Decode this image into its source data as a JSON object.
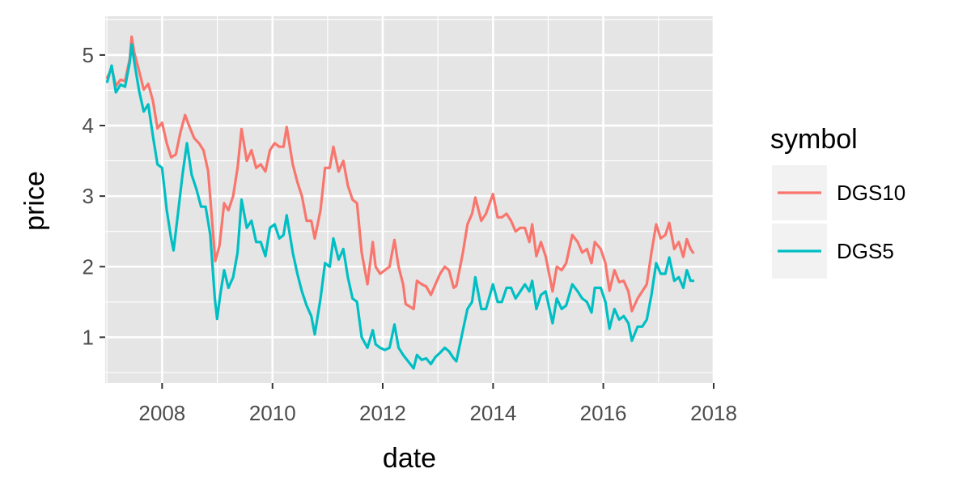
{
  "chart_data": {
    "type": "line",
    "xlabel": "date",
    "ylabel": "price",
    "x_range": [
      "2006-12-20",
      "2018-01-01"
    ],
    "ylim": [
      0.35,
      5.55
    ],
    "x_ticks": [
      {
        "date": "2008-01-01",
        "label": "2008"
      },
      {
        "date": "2010-01-01",
        "label": "2010"
      },
      {
        "date": "2012-01-01",
        "label": "2012"
      },
      {
        "date": "2014-01-01",
        "label": "2014"
      },
      {
        "date": "2016-01-01",
        "label": "2016"
      },
      {
        "date": "2018-01-01",
        "label": "2018"
      }
    ],
    "y_ticks": [
      1,
      2,
      3,
      4,
      5
    ],
    "y_tick_labels": [
      "1",
      "2",
      "3",
      "4",
      "5"
    ],
    "grid": true,
    "panel_background": "#e5e5e5",
    "grid_color": "#ffffff",
    "legend": {
      "title": "symbol",
      "position": "right"
    },
    "series": [
      {
        "name": "DGS10",
        "color": "#f8766d",
        "points": [
          [
            "2007-01-03",
            4.68
          ],
          [
            "2007-02-01",
            4.82
          ],
          [
            "2007-03-01",
            4.56
          ],
          [
            "2007-04-01",
            4.65
          ],
          [
            "2007-05-01",
            4.63
          ],
          [
            "2007-06-01",
            4.95
          ],
          [
            "2007-06-13",
            5.26
          ],
          [
            "2007-07-01",
            5.03
          ],
          [
            "2007-08-01",
            4.78
          ],
          [
            "2007-09-01",
            4.51
          ],
          [
            "2007-10-01",
            4.59
          ],
          [
            "2007-11-01",
            4.35
          ],
          [
            "2007-12-01",
            3.96
          ],
          [
            "2008-01-01",
            4.04
          ],
          [
            "2008-02-01",
            3.75
          ],
          [
            "2008-03-01",
            3.55
          ],
          [
            "2008-04-01",
            3.59
          ],
          [
            "2008-05-01",
            3.9
          ],
          [
            "2008-06-01",
            4.15
          ],
          [
            "2008-07-01",
            3.98
          ],
          [
            "2008-08-01",
            3.82
          ],
          [
            "2008-09-01",
            3.75
          ],
          [
            "2008-10-01",
            3.65
          ],
          [
            "2008-11-01",
            3.35
          ],
          [
            "2008-12-18",
            2.08
          ],
          [
            "2009-01-15",
            2.3
          ],
          [
            "2009-02-15",
            2.9
          ],
          [
            "2009-03-15",
            2.8
          ],
          [
            "2009-04-15",
            3.0
          ],
          [
            "2009-05-15",
            3.4
          ],
          [
            "2009-06-10",
            3.95
          ],
          [
            "2009-07-15",
            3.5
          ],
          [
            "2009-08-15",
            3.65
          ],
          [
            "2009-09-15",
            3.4
          ],
          [
            "2009-10-15",
            3.45
          ],
          [
            "2009-11-15",
            3.35
          ],
          [
            "2009-12-15",
            3.65
          ],
          [
            "2010-01-15",
            3.75
          ],
          [
            "2010-02-15",
            3.7
          ],
          [
            "2010-03-15",
            3.7
          ],
          [
            "2010-04-05",
            3.98
          ],
          [
            "2010-05-15",
            3.45
          ],
          [
            "2010-06-15",
            3.2
          ],
          [
            "2010-07-15",
            3.0
          ],
          [
            "2010-08-15",
            2.65
          ],
          [
            "2010-09-15",
            2.65
          ],
          [
            "2010-10-08",
            2.4
          ],
          [
            "2010-11-15",
            2.8
          ],
          [
            "2010-12-15",
            3.4
          ],
          [
            "2011-01-15",
            3.4
          ],
          [
            "2011-02-08",
            3.7
          ],
          [
            "2011-03-15",
            3.35
          ],
          [
            "2011-04-15",
            3.5
          ],
          [
            "2011-05-15",
            3.15
          ],
          [
            "2011-06-15",
            2.95
          ],
          [
            "2011-07-15",
            2.9
          ],
          [
            "2011-08-15",
            2.2
          ],
          [
            "2011-09-22",
            1.75
          ],
          [
            "2011-10-27",
            2.35
          ],
          [
            "2011-11-15",
            2.0
          ],
          [
            "2011-12-15",
            1.9
          ],
          [
            "2012-01-15",
            1.95
          ],
          [
            "2012-02-15",
            2.0
          ],
          [
            "2012-03-19",
            2.38
          ],
          [
            "2012-04-15",
            2.0
          ],
          [
            "2012-05-15",
            1.75
          ],
          [
            "2012-06-01",
            1.47
          ],
          [
            "2012-07-24",
            1.4
          ],
          [
            "2012-08-15",
            1.8
          ],
          [
            "2012-09-15",
            1.75
          ],
          [
            "2012-10-15",
            1.72
          ],
          [
            "2012-11-15",
            1.6
          ],
          [
            "2012-12-15",
            1.75
          ],
          [
            "2013-01-15",
            1.9
          ],
          [
            "2013-02-15",
            2.0
          ],
          [
            "2013-03-15",
            1.95
          ],
          [
            "2013-04-15",
            1.7
          ],
          [
            "2013-05-03",
            1.73
          ],
          [
            "2013-06-15",
            2.2
          ],
          [
            "2013-07-15",
            2.6
          ],
          [
            "2013-08-15",
            2.75
          ],
          [
            "2013-09-05",
            2.98
          ],
          [
            "2013-10-15",
            2.65
          ],
          [
            "2013-11-15",
            2.75
          ],
          [
            "2013-12-31",
            3.03
          ],
          [
            "2014-01-31",
            2.7
          ],
          [
            "2014-02-28",
            2.7
          ],
          [
            "2014-03-31",
            2.75
          ],
          [
            "2014-04-30",
            2.65
          ],
          [
            "2014-05-30",
            2.5
          ],
          [
            "2014-06-30",
            2.55
          ],
          [
            "2014-07-31",
            2.55
          ],
          [
            "2014-08-29",
            2.35
          ],
          [
            "2014-09-17",
            2.6
          ],
          [
            "2014-10-15",
            2.15
          ],
          [
            "2014-11-14",
            2.35
          ],
          [
            "2014-12-15",
            2.15
          ],
          [
            "2015-01-30",
            1.65
          ],
          [
            "2015-02-27",
            2.0
          ],
          [
            "2015-03-31",
            1.95
          ],
          [
            "2015-04-30",
            2.05
          ],
          [
            "2015-06-10",
            2.45
          ],
          [
            "2015-07-15",
            2.35
          ],
          [
            "2015-08-14",
            2.2
          ],
          [
            "2015-09-15",
            2.25
          ],
          [
            "2015-10-15",
            2.05
          ],
          [
            "2015-11-06",
            2.35
          ],
          [
            "2015-12-15",
            2.25
          ],
          [
            "2016-01-15",
            2.05
          ],
          [
            "2016-02-11",
            1.66
          ],
          [
            "2016-03-15",
            1.95
          ],
          [
            "2016-04-15",
            1.78
          ],
          [
            "2016-05-15",
            1.8
          ],
          [
            "2016-06-15",
            1.65
          ],
          [
            "2016-07-08",
            1.37
          ],
          [
            "2016-08-15",
            1.55
          ],
          [
            "2016-09-15",
            1.65
          ],
          [
            "2016-10-15",
            1.75
          ],
          [
            "2016-11-15",
            2.2
          ],
          [
            "2016-12-16",
            2.6
          ],
          [
            "2017-01-15",
            2.4
          ],
          [
            "2017-02-15",
            2.45
          ],
          [
            "2017-03-13",
            2.62
          ],
          [
            "2017-04-15",
            2.25
          ],
          [
            "2017-05-15",
            2.35
          ],
          [
            "2017-06-14",
            2.14
          ],
          [
            "2017-07-07",
            2.39
          ],
          [
            "2017-08-01",
            2.25
          ],
          [
            "2017-08-18",
            2.2
          ]
        ]
      },
      {
        "name": "DGS5",
        "color": "#00bfc4",
        "points": [
          [
            "2007-01-03",
            4.62
          ],
          [
            "2007-02-01",
            4.85
          ],
          [
            "2007-03-01",
            4.47
          ],
          [
            "2007-04-01",
            4.58
          ],
          [
            "2007-05-01",
            4.55
          ],
          [
            "2007-06-01",
            4.9
          ],
          [
            "2007-06-13",
            5.15
          ],
          [
            "2007-07-01",
            4.9
          ],
          [
            "2007-08-01",
            4.5
          ],
          [
            "2007-09-01",
            4.2
          ],
          [
            "2007-10-01",
            4.3
          ],
          [
            "2007-11-01",
            3.85
          ],
          [
            "2007-12-01",
            3.45
          ],
          [
            "2008-01-01",
            3.4
          ],
          [
            "2008-02-01",
            2.8
          ],
          [
            "2008-03-01",
            2.4
          ],
          [
            "2008-03-17",
            2.23
          ],
          [
            "2008-04-15",
            2.75
          ],
          [
            "2008-05-15",
            3.3
          ],
          [
            "2008-06-13",
            3.75
          ],
          [
            "2008-07-15",
            3.3
          ],
          [
            "2008-08-15",
            3.1
          ],
          [
            "2008-09-15",
            2.85
          ],
          [
            "2008-10-15",
            2.85
          ],
          [
            "2008-11-15",
            2.45
          ],
          [
            "2008-12-15",
            1.55
          ],
          [
            "2008-12-30",
            1.26
          ],
          [
            "2009-01-20",
            1.6
          ],
          [
            "2009-02-15",
            1.95
          ],
          [
            "2009-03-15",
            1.7
          ],
          [
            "2009-04-15",
            1.85
          ],
          [
            "2009-05-15",
            2.2
          ],
          [
            "2009-06-10",
            2.95
          ],
          [
            "2009-07-15",
            2.55
          ],
          [
            "2009-08-15",
            2.65
          ],
          [
            "2009-09-15",
            2.35
          ],
          [
            "2009-10-15",
            2.35
          ],
          [
            "2009-11-15",
            2.15
          ],
          [
            "2009-12-15",
            2.55
          ],
          [
            "2010-01-15",
            2.6
          ],
          [
            "2010-02-15",
            2.4
          ],
          [
            "2010-03-15",
            2.45
          ],
          [
            "2010-04-05",
            2.73
          ],
          [
            "2010-05-15",
            2.2
          ],
          [
            "2010-06-15",
            1.9
          ],
          [
            "2010-07-15",
            1.65
          ],
          [
            "2010-08-15",
            1.45
          ],
          [
            "2010-09-15",
            1.3
          ],
          [
            "2010-10-08",
            1.04
          ],
          [
            "2010-11-15",
            1.55
          ],
          [
            "2010-12-15",
            2.05
          ],
          [
            "2011-01-15",
            2.0
          ],
          [
            "2011-02-08",
            2.4
          ],
          [
            "2011-03-15",
            2.1
          ],
          [
            "2011-04-15",
            2.25
          ],
          [
            "2011-05-15",
            1.85
          ],
          [
            "2011-06-15",
            1.55
          ],
          [
            "2011-07-15",
            1.5
          ],
          [
            "2011-08-15",
            1.0
          ],
          [
            "2011-09-22",
            0.85
          ],
          [
            "2011-10-27",
            1.1
          ],
          [
            "2011-11-15",
            0.9
          ],
          [
            "2011-12-15",
            0.85
          ],
          [
            "2012-01-15",
            0.82
          ],
          [
            "2012-02-15",
            0.85
          ],
          [
            "2012-03-19",
            1.18
          ],
          [
            "2012-04-15",
            0.85
          ],
          [
            "2012-05-15",
            0.75
          ],
          [
            "2012-07-24",
            0.56
          ],
          [
            "2012-08-15",
            0.75
          ],
          [
            "2012-09-15",
            0.68
          ],
          [
            "2012-10-15",
            0.7
          ],
          [
            "2012-11-15",
            0.62
          ],
          [
            "2012-12-15",
            0.72
          ],
          [
            "2013-01-15",
            0.78
          ],
          [
            "2013-02-15",
            0.85
          ],
          [
            "2013-03-15",
            0.8
          ],
          [
            "2013-04-15",
            0.7
          ],
          [
            "2013-05-03",
            0.66
          ],
          [
            "2013-06-15",
            1.1
          ],
          [
            "2013-07-15",
            1.4
          ],
          [
            "2013-08-15",
            1.5
          ],
          [
            "2013-09-05",
            1.85
          ],
          [
            "2013-10-15",
            1.4
          ],
          [
            "2013-11-15",
            1.4
          ],
          [
            "2013-12-31",
            1.75
          ],
          [
            "2014-01-31",
            1.5
          ],
          [
            "2014-02-28",
            1.5
          ],
          [
            "2014-03-31",
            1.7
          ],
          [
            "2014-04-30",
            1.7
          ],
          [
            "2014-05-30",
            1.55
          ],
          [
            "2014-06-30",
            1.65
          ],
          [
            "2014-07-31",
            1.75
          ],
          [
            "2014-08-29",
            1.65
          ],
          [
            "2014-09-17",
            1.8
          ],
          [
            "2014-10-15",
            1.4
          ],
          [
            "2014-11-14",
            1.6
          ],
          [
            "2014-12-15",
            1.65
          ],
          [
            "2015-01-30",
            1.2
          ],
          [
            "2015-02-27",
            1.55
          ],
          [
            "2015-03-31",
            1.4
          ],
          [
            "2015-04-30",
            1.45
          ],
          [
            "2015-06-10",
            1.75
          ],
          [
            "2015-07-15",
            1.65
          ],
          [
            "2015-08-14",
            1.55
          ],
          [
            "2015-09-15",
            1.5
          ],
          [
            "2015-10-15",
            1.35
          ],
          [
            "2015-11-06",
            1.7
          ],
          [
            "2015-12-15",
            1.7
          ],
          [
            "2016-01-15",
            1.5
          ],
          [
            "2016-02-11",
            1.12
          ],
          [
            "2016-03-15",
            1.4
          ],
          [
            "2016-04-15",
            1.25
          ],
          [
            "2016-05-15",
            1.3
          ],
          [
            "2016-06-15",
            1.2
          ],
          [
            "2016-07-08",
            0.95
          ],
          [
            "2016-08-15",
            1.15
          ],
          [
            "2016-09-15",
            1.15
          ],
          [
            "2016-10-15",
            1.25
          ],
          [
            "2016-11-15",
            1.6
          ],
          [
            "2016-12-16",
            2.05
          ],
          [
            "2017-01-15",
            1.9
          ],
          [
            "2017-02-15",
            1.9
          ],
          [
            "2017-03-13",
            2.13
          ],
          [
            "2017-04-15",
            1.8
          ],
          [
            "2017-05-15",
            1.85
          ],
          [
            "2017-06-14",
            1.7
          ],
          [
            "2017-07-07",
            1.95
          ],
          [
            "2017-08-01",
            1.8
          ],
          [
            "2017-08-18",
            1.8
          ]
        ]
      }
    ]
  }
}
